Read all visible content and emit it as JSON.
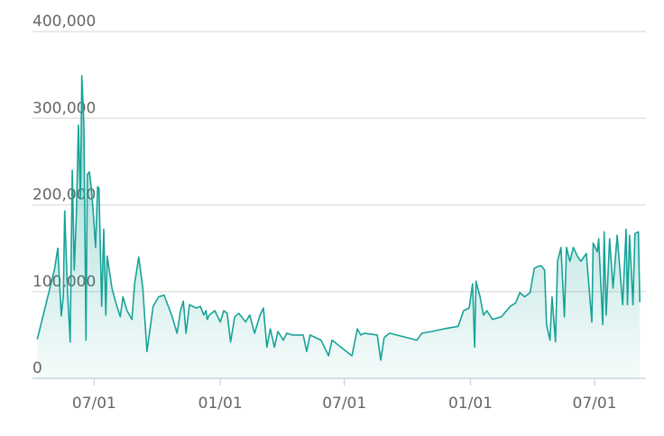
{
  "chart_data": {
    "type": "area",
    "color": "#17a398",
    "grid": true,
    "xlim": [
      0,
      895
    ],
    "ylim": [
      0,
      400000
    ],
    "xticks": [
      {
        "value": 90,
        "label": "07/01"
      },
      {
        "value": 274,
        "label": "01/01"
      },
      {
        "value": 455,
        "label": "07/01"
      },
      {
        "value": 639,
        "label": "01/01"
      },
      {
        "value": 820,
        "label": "07/01"
      }
    ],
    "yticks": [
      0,
      {
        "value": 100000,
        "label": "100,000"
      },
      {
        "value": 200000,
        "label": "200,000"
      },
      {
        "value": 300000,
        "label": "300,000"
      },
      {
        "value": 400000,
        "label": "400,000"
      }
    ],
    "x": [
      7,
      32,
      37,
      42,
      45,
      47,
      51,
      55,
      58,
      61,
      64,
      67,
      70,
      72,
      75,
      78,
      80,
      83,
      86,
      89,
      92,
      95,
      97,
      101,
      104,
      107,
      109,
      112,
      116,
      121,
      128,
      132,
      138,
      145,
      149,
      155,
      161,
      167,
      176,
      184,
      192,
      203,
      211,
      216,
      220,
      224,
      229,
      239,
      245,
      250,
      253,
      255,
      258,
      266,
      274,
      279,
      284,
      289,
      295,
      301,
      311,
      317,
      324,
      332,
      337,
      342,
      347,
      353,
      358,
      366,
      371,
      379,
      395,
      400,
      405,
      421,
      432,
      437,
      466,
      474,
      479,
      484,
      503,
      508,
      513,
      521,
      561,
      568,
      582,
      600,
      621,
      629,
      637,
      642,
      645,
      647,
      653,
      658,
      663,
      671,
      684,
      697,
      705,
      711,
      718,
      726,
      732,
      737,
      742,
      747,
      750,
      755,
      758,
      763,
      766,
      771,
      776,
      779,
      784,
      789,
      795,
      800,
      808,
      816,
      818,
      824,
      826,
      832,
      834,
      837,
      842,
      847,
      853,
      861,
      866,
      868,
      871,
      876,
      879,
      884,
      886
    ],
    "values": [
      45000,
      125000,
      150000,
      72000,
      95000,
      193000,
      104000,
      42000,
      240000,
      125000,
      188000,
      292000,
      208000,
      349000,
      292000,
      44000,
      235000,
      238000,
      219000,
      188000,
      151000,
      221000,
      219000,
      83000,
      172000,
      73000,
      141000,
      125000,
      104000,
      89000,
      71000,
      94000,
      78000,
      68000,
      109000,
      140000,
      104000,
      31000,
      83000,
      94000,
      96000,
      73000,
      52000,
      78000,
      89000,
      52000,
      85000,
      81000,
      83000,
      73000,
      78000,
      68000,
      73000,
      78000,
      65000,
      78000,
      75000,
      42000,
      71000,
      75000,
      65000,
      73000,
      52000,
      73000,
      81000,
      36000,
      57000,
      36000,
      54000,
      44000,
      52000,
      50000,
      50000,
      31000,
      50000,
      44000,
      26000,
      44000,
      26000,
      57000,
      50000,
      52000,
      50000,
      21000,
      47000,
      52000,
      44000,
      52000,
      54000,
      57000,
      60000,
      78000,
      81000,
      109000,
      36000,
      112000,
      94000,
      73000,
      78000,
      68000,
      71000,
      83000,
      87000,
      99000,
      94000,
      99000,
      127000,
      129000,
      130000,
      125000,
      62000,
      44000,
      94000,
      42000,
      135000,
      151000,
      71000,
      151000,
      135000,
      151000,
      141000,
      135000,
      144000,
      65000,
      156000,
      146000,
      161000,
      62000,
      169000,
      73000,
      161000,
      104000,
      165000,
      85000,
      172000,
      85000,
      165000,
      85000,
      167000,
      169000,
      88000
    ]
  }
}
